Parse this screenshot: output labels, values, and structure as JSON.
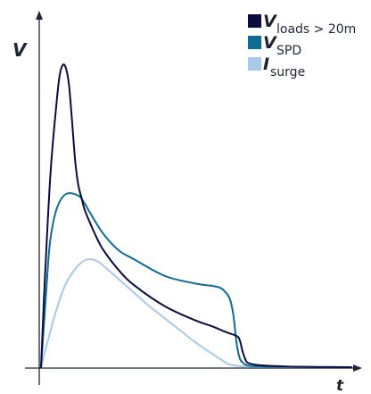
{
  "chart_data": {
    "type": "line",
    "ylabel": "V",
    "xlabel": "t",
    "xlim": [
      0,
      100
    ],
    "ylim": [
      0,
      100
    ],
    "legend_position": "top-right",
    "grid": false,
    "tick_labels": "none",
    "series": [
      {
        "name_symbol": "V",
        "name_subscript": "loads > 20m",
        "color": "#0b0c3f",
        "x": [
          0,
          1,
          3,
          5,
          6,
          7,
          8,
          9,
          10,
          11,
          12,
          13,
          14,
          16,
          18,
          20,
          25,
          30,
          40,
          50,
          55,
          60,
          63,
          64,
          65,
          66,
          67,
          70,
          75,
          80,
          85,
          90,
          100
        ],
        "y": [
          0,
          24,
          63,
          87,
          96,
          99.5,
          98.5,
          93,
          81,
          68,
          60,
          56,
          52,
          47,
          42.5,
          38.7,
          32,
          27,
          20,
          15.3,
          13.5,
          11.4,
          10.3,
          9,
          5,
          2.2,
          1.3,
          0.7,
          0.4,
          0.2,
          0.1,
          0.05,
          0
        ]
      },
      {
        "name_symbol": "V",
        "name_subscript": "SPD",
        "color": "#0d6b94",
        "x": [
          0,
          1,
          2,
          3,
          5,
          8,
          12,
          14,
          16,
          20,
          25,
          30,
          40,
          50,
          55,
          58,
          60,
          61,
          62,
          63,
          64,
          65,
          66,
          68,
          72,
          80,
          90,
          100
        ],
        "y": [
          0,
          15,
          30,
          42,
          52,
          57,
          56.5,
          54,
          50.5,
          44,
          38.5,
          35.5,
          30,
          27.5,
          26.8,
          26,
          24,
          22,
          17,
          8,
          3,
          1.5,
          0.8,
          0.4,
          0.2,
          0.1,
          0.05,
          0
        ]
      },
      {
        "name_symbol": "I",
        "name_subscript": "surge",
        "color": "#a9c9e8",
        "x": [
          0,
          2,
          5,
          8,
          12,
          15,
          18,
          20,
          25,
          30,
          35,
          40,
          45,
          50,
          55,
          58,
          60,
          62,
          65,
          70,
          80,
          100
        ],
        "y": [
          0,
          8,
          19,
          27.5,
          33.5,
          35.5,
          35,
          33.5,
          29,
          24.5,
          20,
          16,
          12,
          8,
          4.5,
          2.5,
          1.2,
          0.6,
          0.3,
          0.1,
          0.05,
          0
        ]
      }
    ]
  }
}
